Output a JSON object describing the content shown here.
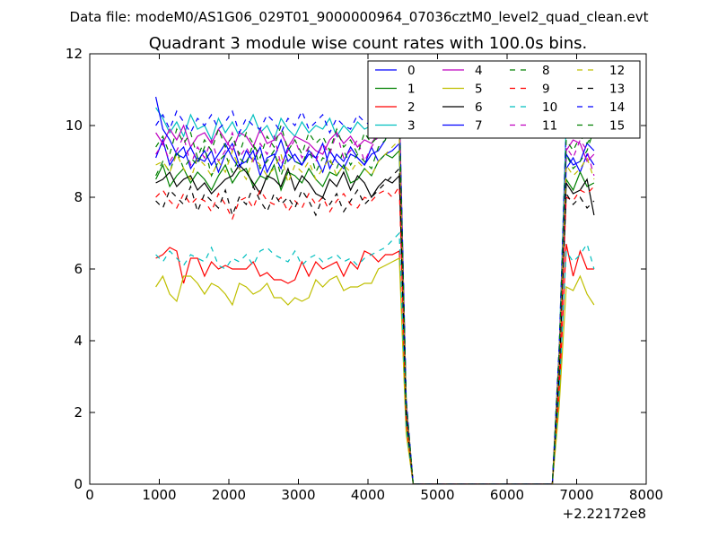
{
  "suptitle": "Data file: modeM0/AS1G06_029T01_9000000964_07036cztM0_level2_quad_clean.evt",
  "chart_data": {
    "type": "line",
    "title": "Quadrant 3 module wise count rates with 100.0s bins.",
    "xlabel": "",
    "ylabel": "",
    "x_offset_label": "+2.22172e8",
    "xlim": [
      0,
      8000
    ],
    "ylim": [
      0,
      12
    ],
    "xticks": [
      0,
      1000,
      2000,
      3000,
      4000,
      5000,
      6000,
      7000,
      8000
    ],
    "yticks": [
      0,
      2,
      4,
      6,
      8,
      10,
      12
    ],
    "grid": false,
    "legend_placement": "top-right",
    "legend_columns": 4,
    "x": [
      950,
      1050,
      1150,
      1250,
      1350,
      1450,
      1550,
      1650,
      1750,
      1850,
      1950,
      2050,
      2150,
      2250,
      2350,
      2450,
      2550,
      2650,
      2750,
      2850,
      2950,
      3050,
      3150,
      3250,
      3350,
      3450,
      3550,
      3650,
      3750,
      3850,
      3950,
      4050,
      4150,
      4250,
      4350,
      4450,
      4550,
      4650,
      4750,
      4850,
      4950,
      5050,
      5150,
      5250,
      5350,
      5450,
      5550,
      5650,
      5750,
      5850,
      5950,
      6050,
      6150,
      6250,
      6350,
      6450,
      6550,
      6650,
      6750,
      6850,
      6950,
      7050,
      7150,
      7250
    ],
    "series": [
      {
        "name": "0",
        "color": "#0000ff",
        "dash": "solid",
        "values": [
          9.1,
          9.6,
          8.9,
          9.2,
          9.4,
          8.8,
          9.1,
          9.0,
          9.3,
          8.7,
          9.2,
          9.5,
          8.9,
          9.0,
          9.3,
          8.6,
          9.1,
          9.2,
          8.8,
          9.4,
          9.0,
          8.9,
          9.2,
          9.1,
          8.7,
          9.3,
          9.0,
          8.8,
          9.2,
          9.1,
          8.9,
          9.4,
          9.0,
          9.2,
          9.3,
          9.5,
          2.1,
          0.0,
          0.0,
          0.0,
          0.0,
          0.0,
          0.0,
          0.0,
          0.0,
          0.0,
          0.0,
          0.0,
          0.0,
          0.0,
          0.0,
          0.0,
          0.0,
          0.0,
          0.0,
          0.0,
          0.0,
          0.0,
          3.5,
          8.8,
          9.1,
          8.7,
          9.2,
          8.9
        ]
      },
      {
        "name": "1",
        "color": "#008000",
        "dash": "solid",
        "values": [
          8.5,
          8.9,
          8.3,
          8.6,
          8.8,
          8.4,
          8.7,
          8.5,
          8.2,
          8.6,
          8.9,
          8.4,
          8.7,
          8.8,
          8.3,
          8.6,
          8.5,
          8.9,
          8.2,
          8.7,
          8.6,
          8.4,
          8.8,
          8.5,
          8.3,
          8.7,
          8.6,
          8.9,
          8.4,
          8.5,
          8.8,
          8.6,
          9.0,
          9.2,
          9.1,
          9.3,
          2.0,
          0.0,
          0.0,
          0.0,
          0.0,
          0.0,
          0.0,
          0.0,
          0.0,
          0.0,
          0.0,
          0.0,
          0.0,
          0.0,
          0.0,
          0.0,
          0.0,
          0.0,
          0.0,
          0.0,
          0.0,
          0.0,
          3.2,
          8.5,
          8.2,
          8.7,
          8.3,
          8.4
        ]
      },
      {
        "name": "2",
        "color": "#ff0000",
        "dash": "solid",
        "values": [
          6.3,
          6.4,
          6.6,
          6.5,
          5.6,
          6.3,
          6.3,
          5.8,
          6.2,
          6.0,
          6.1,
          6.0,
          6.0,
          6.0,
          6.2,
          5.8,
          5.9,
          5.7,
          5.7,
          5.6,
          5.7,
          6.2,
          5.8,
          6.2,
          6.0,
          6.1,
          6.2,
          5.8,
          6.2,
          6.0,
          6.5,
          6.4,
          6.2,
          6.4,
          6.4,
          6.5,
          1.5,
          0.0,
          0.0,
          0.0,
          0.0,
          0.0,
          0.0,
          0.0,
          0.0,
          0.0,
          0.0,
          0.0,
          0.0,
          0.0,
          0.0,
          0.0,
          0.0,
          0.0,
          0.0,
          0.0,
          0.0,
          0.0,
          2.5,
          6.7,
          5.8,
          6.5,
          6.0,
          6.0
        ]
      },
      {
        "name": "3",
        "color": "#00bfbf",
        "dash": "solid",
        "values": [
          10.5,
          10.2,
          9.8,
          10.1,
          9.7,
          10.3,
          9.9,
          10.0,
          9.6,
          10.2,
          9.8,
          10.1,
          9.7,
          9.9,
          10.3,
          9.8,
          10.0,
          9.6,
          10.2,
          9.9,
          9.7,
          10.1,
          9.8,
          10.0,
          9.9,
          10.2,
          9.7,
          10.0,
          9.8,
          10.1,
          9.9,
          10.0,
          10.2,
          10.3,
          10.1,
          10.4,
          2.3,
          0.0,
          0.0,
          0.0,
          0.0,
          0.0,
          0.0,
          0.0,
          0.0,
          0.0,
          0.0,
          0.0,
          0.0,
          0.0,
          0.0,
          0.0,
          0.0,
          0.0,
          0.0,
          0.0,
          0.0,
          0.0,
          3.8,
          10.1,
          9.9,
          10.2,
          10.4,
          10.0
        ]
      },
      {
        "name": "4",
        "color": "#bf00bf",
        "dash": "solid",
        "values": [
          9.8,
          9.5,
          9.9,
          9.6,
          10.0,
          9.4,
          9.7,
          9.8,
          9.5,
          9.9,
          9.6,
          9.3,
          9.8,
          9.7,
          9.4,
          9.9,
          9.5,
          9.6,
          9.8,
          9.4,
          9.7,
          9.6,
          9.5,
          9.3,
          9.2,
          9.6,
          9.8,
          9.5,
          9.7,
          9.4,
          9.6,
          9.5,
          9.8,
          10.0,
          9.7,
          10.0,
          2.2,
          0.0,
          0.0,
          0.0,
          0.0,
          0.0,
          0.0,
          0.0,
          0.0,
          0.0,
          0.0,
          0.0,
          0.0,
          0.0,
          0.0,
          0.0,
          0.0,
          0.0,
          0.0,
          0.0,
          0.0,
          0.0,
          3.6,
          9.3,
          9.6,
          9.5,
          9.0,
          9.2
        ]
      },
      {
        "name": "5",
        "color": "#bfbf00",
        "dash": "solid",
        "values": [
          5.5,
          5.8,
          5.3,
          5.1,
          5.8,
          5.8,
          5.6,
          5.3,
          5.6,
          5.5,
          5.3,
          5.0,
          5.6,
          5.5,
          5.3,
          5.4,
          5.6,
          5.2,
          5.2,
          5.0,
          5.2,
          5.1,
          5.2,
          5.7,
          5.5,
          5.7,
          5.8,
          5.4,
          5.5,
          5.5,
          5.6,
          5.6,
          6.0,
          6.1,
          6.2,
          6.3,
          1.4,
          0.0,
          0.0,
          0.0,
          0.0,
          0.0,
          0.0,
          0.0,
          0.0,
          0.0,
          0.0,
          0.0,
          0.0,
          0.0,
          0.0,
          0.0,
          0.0,
          0.0,
          0.0,
          0.0,
          0.0,
          0.0,
          2.2,
          5.5,
          5.4,
          5.8,
          5.3,
          5.0
        ]
      },
      {
        "name": "6",
        "color": "#000000",
        "dash": "solid",
        "values": [
          8.4,
          8.5,
          8.7,
          8.3,
          8.5,
          8.6,
          8.2,
          8.4,
          8.1,
          8.3,
          8.5,
          8.6,
          8.9,
          8.7,
          8.4,
          8.1,
          8.6,
          8.5,
          8.3,
          8.8,
          8.2,
          8.6,
          8.4,
          8.1,
          8.0,
          8.5,
          8.3,
          8.7,
          8.2,
          8.6,
          8.4,
          8.0,
          8.3,
          8.5,
          8.4,
          8.6,
          1.9,
          0.0,
          0.0,
          0.0,
          0.0,
          0.0,
          0.0,
          0.0,
          0.0,
          0.0,
          0.0,
          0.0,
          0.0,
          0.0,
          0.0,
          0.0,
          0.0,
          0.0,
          0.0,
          0.0,
          0.0,
          0.0,
          3.3,
          8.4,
          8.1,
          8.2,
          8.5,
          7.5
        ]
      },
      {
        "name": "7",
        "color": "#0000ff",
        "dash": "solid",
        "values": [
          10.8,
          9.9,
          9.6,
          9.2,
          9.1,
          9.4,
          9.0,
          9.3,
          8.9,
          9.2,
          9.5,
          9.1,
          8.8,
          9.3,
          9.0,
          9.4,
          8.7,
          9.1,
          9.6,
          9.0,
          9.2,
          8.9,
          9.3,
          9.1,
          9.5,
          8.8,
          9.2,
          9.0,
          9.4,
          9.1,
          8.9,
          9.2,
          9.3,
          9.6,
          10.8,
          10.5,
          2.2,
          0.0,
          0.0,
          0.0,
          0.0,
          0.0,
          0.0,
          0.0,
          0.0,
          0.0,
          0.0,
          0.0,
          0.0,
          0.0,
          0.0,
          0.0,
          0.0,
          0.0,
          0.0,
          0.0,
          0.0,
          0.0,
          3.4,
          9.2,
          8.9,
          9.0,
          9.5,
          9.3
        ]
      },
      {
        "name": "8",
        "color": "#008000",
        "dash": "dashed",
        "values": [
          8.6,
          9.0,
          8.7,
          9.3,
          8.8,
          9.1,
          8.9,
          9.4,
          8.6,
          9.0,
          9.2,
          8.7,
          9.1,
          8.9,
          9.5,
          8.8,
          9.0,
          9.3,
          8.6,
          9.2,
          9.0,
          8.9,
          9.4,
          8.7,
          9.1,
          9.0,
          8.8,
          9.3,
          8.9,
          9.2,
          9.0,
          8.8,
          9.4,
          9.6,
          10.2,
          10.4,
          2.3,
          0.0,
          0.0,
          0.0,
          0.0,
          0.0,
          0.0,
          0.0,
          0.0,
          0.0,
          0.0,
          0.0,
          0.0,
          0.0,
          0.0,
          0.0,
          0.0,
          0.0,
          0.0,
          0.0,
          0.0,
          0.0,
          3.6,
          9.2,
          8.8,
          9.0,
          9.3,
          9.9
        ]
      },
      {
        "name": "9",
        "color": "#ff0000",
        "dash": "dashed",
        "values": [
          8.0,
          8.2,
          7.9,
          7.7,
          8.1,
          7.8,
          8.0,
          7.9,
          7.6,
          8.1,
          7.8,
          7.4,
          7.9,
          8.0,
          7.7,
          8.2,
          7.9,
          7.8,
          8.0,
          7.6,
          7.9,
          7.7,
          8.1,
          7.8,
          8.0,
          7.6,
          7.9,
          8.1,
          7.8,
          7.7,
          8.0,
          7.9,
          8.1,
          8.2,
          8.0,
          8.3,
          1.8,
          0.0,
          0.0,
          0.0,
          0.0,
          0.0,
          0.0,
          0.0,
          0.0,
          0.0,
          0.0,
          0.0,
          0.0,
          0.0,
          0.0,
          0.0,
          0.0,
          0.0,
          0.0,
          0.0,
          0.0,
          0.0,
          3.0,
          8.0,
          7.9,
          8.2,
          8.1,
          8.3
        ]
      },
      {
        "name": "10",
        "color": "#00bfbf",
        "dash": "dashed",
        "values": [
          6.4,
          6.2,
          6.5,
          6.3,
          6.1,
          6.4,
          6.3,
          6.2,
          6.6,
          6.1,
          6.0,
          6.3,
          6.2,
          6.4,
          6.1,
          6.5,
          6.6,
          6.4,
          6.3,
          6.2,
          6.5,
          6.1,
          6.3,
          6.4,
          6.2,
          6.3,
          6.4,
          6.2,
          6.3,
          6.1,
          6.3,
          6.4,
          6.5,
          6.6,
          6.8,
          7.0,
          1.6,
          0.0,
          0.0,
          0.0,
          0.0,
          0.0,
          0.0,
          0.0,
          0.0,
          0.0,
          0.0,
          0.0,
          0.0,
          0.0,
          0.0,
          0.0,
          0.0,
          0.0,
          0.0,
          0.0,
          0.0,
          0.0,
          2.6,
          6.5,
          6.2,
          6.4,
          6.7,
          6.0
        ]
      },
      {
        "name": "11",
        "color": "#bf00bf",
        "dash": "dashed",
        "values": [
          9.2,
          9.5,
          9.0,
          9.3,
          9.7,
          8.9,
          9.4,
          9.1,
          9.6,
          9.0,
          9.3,
          9.8,
          9.1,
          9.4,
          9.0,
          9.5,
          9.2,
          9.7,
          8.9,
          9.3,
          9.6,
          9.1,
          9.4,
          9.0,
          9.5,
          9.2,
          9.8,
          9.1,
          9.3,
          9.6,
          9.0,
          9.4,
          9.7,
          10.0,
          10.3,
          10.6,
          2.3,
          0.0,
          0.0,
          0.0,
          0.0,
          0.0,
          0.0,
          0.0,
          0.0,
          0.0,
          0.0,
          0.0,
          0.0,
          0.0,
          0.0,
          0.0,
          0.0,
          0.0,
          0.0,
          0.0,
          0.0,
          0.0,
          3.7,
          9.4,
          9.1,
          9.6,
          9.3,
          8.6
        ]
      },
      {
        "name": "12",
        "color": "#bfbf00",
        "dash": "dashed",
        "values": [
          8.9,
          9.0,
          8.7,
          9.2,
          8.8,
          8.5,
          9.1,
          8.9,
          8.6,
          9.0,
          8.7,
          9.3,
          8.8,
          8.5,
          9.1,
          8.9,
          8.6,
          8.8,
          9.2,
          8.4,
          8.9,
          8.7,
          9.0,
          8.5,
          8.8,
          9.1,
          8.6,
          8.9,
          8.7,
          9.0,
          8.8,
          8.6,
          9.0,
          9.2,
          9.4,
          9.6,
          2.1,
          0.0,
          0.0,
          0.0,
          0.0,
          0.0,
          0.0,
          0.0,
          0.0,
          0.0,
          0.0,
          0.0,
          0.0,
          0.0,
          0.0,
          0.0,
          0.0,
          0.0,
          0.0,
          0.0,
          0.0,
          0.0,
          3.4,
          8.9,
          8.6,
          8.8,
          9.1,
          8.5
        ]
      },
      {
        "name": "13",
        "color": "#000000",
        "dash": "dashed",
        "values": [
          7.9,
          7.7,
          8.2,
          8.0,
          7.8,
          8.3,
          7.6,
          8.1,
          7.9,
          7.7,
          8.2,
          7.5,
          8.0,
          7.8,
          8.3,
          7.9,
          7.6,
          8.1,
          7.8,
          8.0,
          7.7,
          8.2,
          7.9,
          7.5,
          8.0,
          7.8,
          8.1,
          7.6,
          7.9,
          8.2,
          7.8,
          8.0,
          8.2,
          8.4,
          8.6,
          8.8,
          1.9,
          0.0,
          0.0,
          0.0,
          0.0,
          0.0,
          0.0,
          0.0,
          0.0,
          0.0,
          0.0,
          0.0,
          0.0,
          0.0,
          0.0,
          0.0,
          0.0,
          0.0,
          0.0,
          0.0,
          0.0,
          0.0,
          3.1,
          8.1,
          7.8,
          8.0,
          7.7,
          7.9
        ]
      },
      {
        "name": "14",
        "color": "#0000ff",
        "dash": "dashed",
        "values": [
          10.0,
          10.3,
          9.9,
          10.4,
          10.1,
          9.8,
          10.2,
          10.0,
          10.3,
          9.9,
          10.1,
          10.4,
          9.8,
          10.2,
          10.0,
          9.9,
          10.3,
          10.1,
          9.8,
          10.2,
          10.0,
          10.4,
          9.9,
          10.1,
          10.3,
          9.8,
          10.2,
          10.0,
          9.9,
          10.3,
          10.1,
          10.0,
          10.2,
          10.5,
          10.6,
          10.7,
          2.4,
          0.0,
          0.0,
          0.0,
          0.0,
          0.0,
          0.0,
          0.0,
          0.0,
          0.0,
          0.0,
          0.0,
          0.0,
          0.0,
          0.0,
          0.0,
          0.0,
          0.0,
          0.0,
          0.0,
          0.0,
          0.0,
          3.9,
          10.0,
          10.2,
          9.9,
          10.1,
          10.4
        ]
      },
      {
        "name": "15",
        "color": "#008000",
        "dash": "dashed",
        "values": [
          9.4,
          9.7,
          9.2,
          9.9,
          9.5,
          9.8,
          9.1,
          9.6,
          9.3,
          9.9,
          9.4,
          9.7,
          9.2,
          9.8,
          9.5,
          9.1,
          9.7,
          9.4,
          10.0,
          9.3,
          9.6,
          9.2,
          9.8,
          9.5,
          9.7,
          9.3,
          9.9,
          9.4,
          9.6,
          9.2,
          9.8,
          9.5,
          9.7,
          10.0,
          10.2,
          10.4,
          2.3,
          0.0,
          0.0,
          0.0,
          0.0,
          0.0,
          0.0,
          0.0,
          0.0,
          0.0,
          0.0,
          0.0,
          0.0,
          0.0,
          0.0,
          0.0,
          0.0,
          0.0,
          0.0,
          0.0,
          0.0,
          0.0,
          3.7,
          9.6,
          9.3,
          9.7,
          9.5,
          9.8
        ]
      }
    ]
  }
}
